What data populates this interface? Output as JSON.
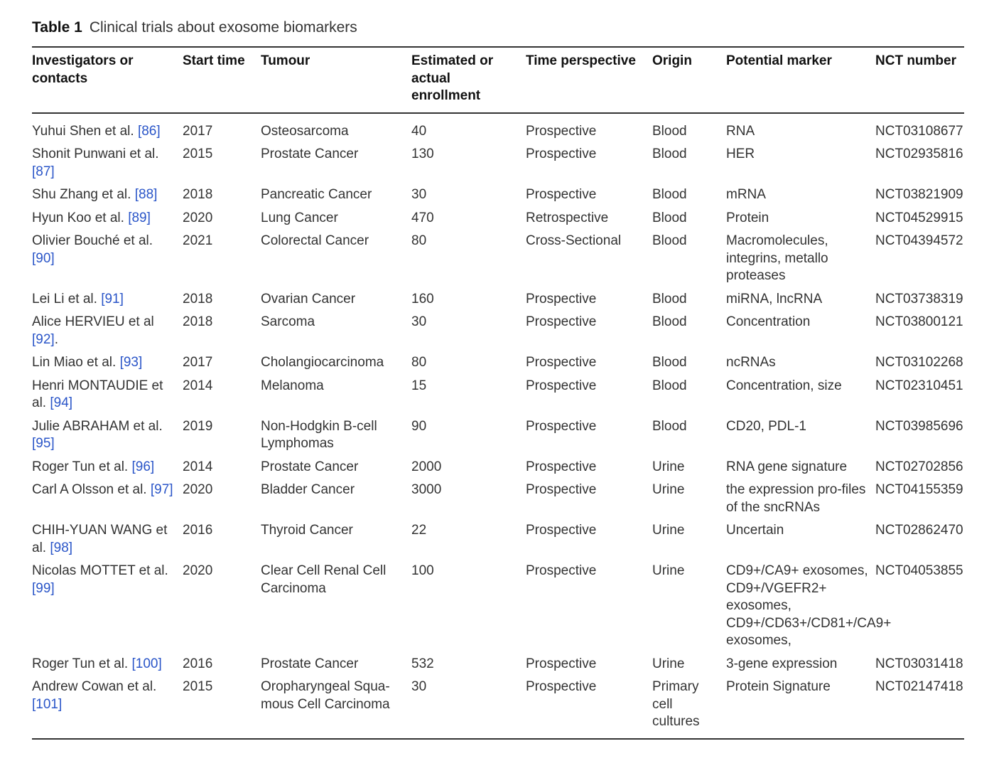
{
  "caption": {
    "label": "Table 1",
    "title": "Clinical trials about exosome biomarkers"
  },
  "columns": [
    "Investigators or contacts",
    "Start time",
    "Tumour",
    "Estimated or actual enrollment",
    "Time perspective",
    "Origin",
    "Potential marker",
    "NCT number"
  ],
  "rows": [
    {
      "investigator": "Yuhui Shen et al.",
      "ref": "[86]",
      "ref_suffix": "",
      "start": "2017",
      "tumour": "Osteosarcoma",
      "enrollment": "40",
      "perspective": "Prospective",
      "origin": "Blood",
      "marker": "RNA",
      "nct": "NCT03108677"
    },
    {
      "investigator": "Shonit Punwani et al.",
      "ref": "[87]",
      "ref_suffix": "",
      "start": "2015",
      "tumour": "Prostate Cancer",
      "enrollment": "130",
      "perspective": "Prospective",
      "origin": "Blood",
      "marker": "HER",
      "nct": "NCT02935816"
    },
    {
      "investigator": "Shu Zhang et al.",
      "ref": "[88]",
      "ref_suffix": "",
      "start": "2018",
      "tumour": "Pancreatic Cancer",
      "enrollment": "30",
      "perspective": "Prospective",
      "origin": "Blood",
      "marker": "mRNA",
      "nct": "NCT03821909"
    },
    {
      "investigator": "Hyun Koo et al.",
      "ref": "[89]",
      "ref_suffix": "",
      "start": "2020",
      "tumour": "Lung Cancer",
      "enrollment": "470",
      "perspective": "Retrospective",
      "origin": "Blood",
      "marker": "Protein",
      "nct": "NCT04529915"
    },
    {
      "investigator": "Olivier Bouché et al.",
      "ref": "[90]",
      "ref_suffix": "",
      "start": "2021",
      "tumour": "Colorectal Cancer",
      "enrollment": "80",
      "perspective": "Cross-Sectional",
      "origin": "Blood",
      "marker": "Macromolecules, integrins, metallo proteases",
      "nct": "NCT04394572"
    },
    {
      "investigator": "Lei Li et al.",
      "ref": "[91]",
      "ref_suffix": "",
      "start": "2018",
      "tumour": "Ovarian Cancer",
      "enrollment": "160",
      "perspective": "Prospective",
      "origin": "Blood",
      "marker": "miRNA, lncRNA",
      "nct": "NCT03738319"
    },
    {
      "investigator": "Alice HERVIEU et al",
      "ref": "[92]",
      "ref_suffix": ".",
      "start": "2018",
      "tumour": "Sarcoma",
      "enrollment": "30",
      "perspective": "Prospective",
      "origin": "Blood",
      "marker": "Concentration",
      "nct": "NCT03800121"
    },
    {
      "investigator": "Lin Miao et al.",
      "ref": "[93]",
      "ref_suffix": "",
      "start": "2017",
      "tumour": "Cholangiocarcinoma",
      "enrollment": "80",
      "perspective": "Prospective",
      "origin": "Blood",
      "marker": "ncRNAs",
      "nct": "NCT03102268"
    },
    {
      "investigator": "Henri MONTAUDIE et al.",
      "ref": "[94]",
      "ref_suffix": "",
      "start": "2014",
      "tumour": "Melanoma",
      "enrollment": "15",
      "perspective": "Prospective",
      "origin": "Blood",
      "marker": "Concentration, size",
      "nct": "NCT02310451"
    },
    {
      "investigator": "Julie ABRAHAM et al.",
      "ref": "[95]",
      "ref_suffix": "",
      "start": "2019",
      "tumour": "Non-Hodgkin B-cell Lymphomas",
      "enrollment": "90",
      "perspective": "Prospective",
      "origin": "Blood",
      "marker": "CD20, PDL-1",
      "nct": "NCT03985696"
    },
    {
      "investigator": "Roger Tun et al.",
      "ref": "[96]",
      "ref_suffix": "",
      "start": "2014",
      "tumour": "Prostate Cancer",
      "enrollment": "2000",
      "perspective": "Prospective",
      "origin": "Urine",
      "marker": "RNA gene signature",
      "nct": "NCT02702856"
    },
    {
      "investigator": "Carl A Olsson et al.",
      "ref": "[97]",
      "ref_suffix": "",
      "start": "2020",
      "tumour": "Bladder Cancer",
      "enrollment": "3000",
      "perspective": "Prospective",
      "origin": "Urine",
      "marker": "the expression pro-files of the sncRNAs",
      "nct": "NCT04155359"
    },
    {
      "investigator": "CHIH-YUAN WANG et al.",
      "ref": "[98]",
      "ref_suffix": "",
      "start": "2016",
      "tumour": "Thyroid Cancer",
      "enrollment": "22",
      "perspective": "Prospective",
      "origin": "Urine",
      "marker": "Uncertain",
      "nct": "NCT02862470"
    },
    {
      "investigator": "Nicolas MOTTET et al.",
      "ref": "[99]",
      "ref_suffix": "",
      "start": "2020",
      "tumour": "Clear Cell Renal Cell Carcinoma",
      "enrollment": "100",
      "perspective": "Prospective",
      "origin": "Urine",
      "marker": "CD9+/CA9+ exosomes, CD9+/VGEFR2+ exosomes, CD9+/CD63+/CD81+/CA9+ exosomes,",
      "nct": "NCT04053855"
    },
    {
      "investigator": "Roger Tun et al.",
      "ref": "[100]",
      "ref_suffix": "",
      "start": "2016",
      "tumour": "Prostate Cancer",
      "enrollment": "532",
      "perspective": "Prospective",
      "origin": "Urine",
      "marker": "3-gene expression",
      "nct": "NCT03031418"
    },
    {
      "investigator": "Andrew Cowan et al.",
      "ref": "[101]",
      "ref_suffix": "",
      "start": "2015",
      "tumour": "Oropharyngeal Squa-mous Cell Carcinoma",
      "enrollment": "30",
      "perspective": "Prospective",
      "origin": "Primary cell cultures",
      "marker": "Protein Signature",
      "nct": "NCT02147418"
    }
  ]
}
